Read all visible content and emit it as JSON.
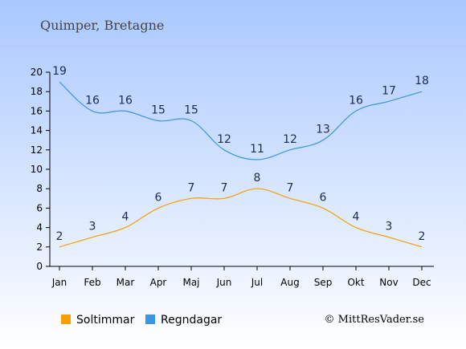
{
  "colors": {
    "sun": "#f5a000",
    "rain": "#3a96e0",
    "bg_top": "#a9c8ff",
    "bg_bottom": "#ffffff",
    "axis": "#000000"
  },
  "chart_data": {
    "type": "line",
    "title": "Quimper, Bretagne",
    "categories": [
      "Jan",
      "Feb",
      "Mar",
      "Apr",
      "Maj",
      "Jun",
      "Jul",
      "Aug",
      "Sep",
      "Okt",
      "Nov",
      "Dec"
    ],
    "series": [
      {
        "name": "Soltimmar",
        "values": [
          2,
          3,
          4,
          6,
          7,
          7,
          8,
          7,
          6,
          4,
          3,
          2
        ]
      },
      {
        "name": "Regndagar",
        "values": [
          19,
          16,
          16,
          15,
          15,
          12,
          11,
          12,
          13,
          16,
          17,
          18
        ]
      }
    ],
    "y_ticks": [
      0,
      2,
      4,
      6,
      8,
      10,
      12,
      14,
      16,
      18,
      20
    ],
    "ylim": [
      0,
      20
    ],
    "grid": false,
    "legend": "bottom-left",
    "credit": "© MittResVader.se"
  }
}
